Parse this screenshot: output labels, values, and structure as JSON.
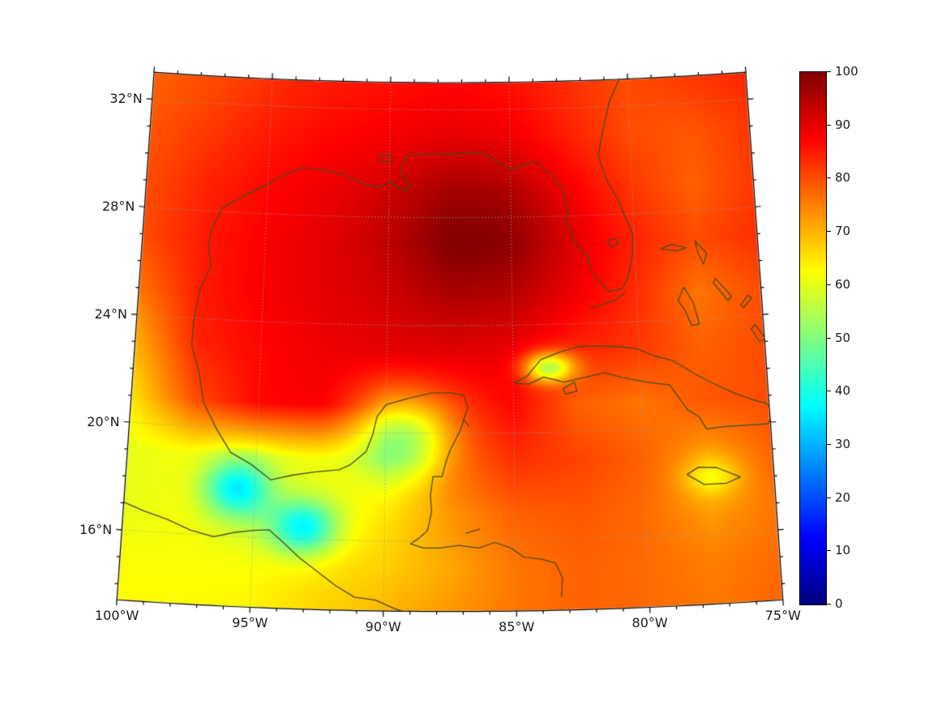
{
  "figure": {
    "kind": "geographic field plot (percentage field over Gulf of Mexico / Caribbean)",
    "background": "#ffffff"
  },
  "chart_data": {
    "type": "heatmap",
    "projection": "lambert-conformal-conic",
    "extent": {
      "lon_min": -100,
      "lon_max": -75,
      "lat_min": 13.4,
      "lat_max": 33
    },
    "colorbar": {
      "min": 0,
      "max": 100,
      "ticks": [
        0,
        10,
        20,
        30,
        40,
        50,
        60,
        70,
        80,
        90,
        100
      ]
    },
    "colormap": {
      "name": "jet",
      "stops": [
        [
          0,
          "#00007f"
        ],
        [
          0.125,
          "#0000ff"
        ],
        [
          0.375,
          "#00ffff"
        ],
        [
          0.625,
          "#ffff00"
        ],
        [
          0.875,
          "#ff0000"
        ],
        [
          1,
          "#7f0000"
        ]
      ]
    },
    "y_tick_labels": [
      {
        "lat": 32,
        "label": "32°N"
      },
      {
        "lat": 28,
        "label": "28°N"
      },
      {
        "lat": 24,
        "label": "24°N"
      },
      {
        "lat": 20,
        "label": "20°N"
      },
      {
        "lat": 16,
        "label": "16°N"
      }
    ],
    "x_tick_labels": [
      {
        "lon": -100,
        "label": "100°W"
      },
      {
        "lon": -95,
        "label": "95°W"
      },
      {
        "lon": -90,
        "label": "90°W"
      },
      {
        "lon": -85,
        "label": "85°W"
      },
      {
        "lon": -80,
        "label": "80°W"
      },
      {
        "lon": -75,
        "label": "75°W"
      }
    ],
    "graticule": {
      "lats": [
        16,
        20,
        24,
        28,
        32
      ],
      "lons": [
        -100,
        -95,
        -90,
        -85,
        -80,
        -75
      ]
    },
    "field_grid": {
      "comment": "value grid (0-100), rows north-to-south lat 33..13 step -2, cols lon -100..-75 step 2.5",
      "lat_start": 33,
      "lat_step": -2,
      "lon_start": -100,
      "lon_step": 2.5,
      "values": [
        [
          78,
          80,
          83,
          85,
          86,
          87,
          86,
          83,
          80,
          82,
          84
        ],
        [
          79,
          82,
          85,
          87,
          88,
          89,
          88,
          84,
          80,
          79,
          82
        ],
        [
          80,
          84,
          87,
          89,
          91,
          93,
          92,
          87,
          82,
          78,
          82
        ],
        [
          80,
          85,
          88,
          90,
          92,
          95,
          94,
          89,
          84,
          80,
          83
        ],
        [
          76,
          85,
          88,
          90,
          91,
          93,
          92,
          88,
          83,
          76,
          80
        ],
        [
          70,
          84,
          87,
          89,
          90,
          90,
          89,
          84,
          82,
          78,
          80
        ],
        [
          65,
          80,
          87,
          88,
          80,
          83,
          87,
          78,
          76,
          79,
          80
        ],
        [
          60,
          62,
          60,
          62,
          63,
          78,
          83,
          81,
          78,
          72,
          78
        ],
        [
          60,
          62,
          58,
          60,
          65,
          73,
          78,
          79,
          77,
          72,
          76
        ],
        [
          62,
          62,
          62,
          65,
          67,
          71,
          76,
          78,
          77,
          75,
          77
        ],
        [
          63,
          63,
          64,
          67,
          70,
          73,
          76,
          78,
          77,
          76,
          78
        ]
      ]
    },
    "anomaly_blobs": [
      {
        "lon": -86.3,
        "lat": 27.4,
        "sigma_lon": 2.6,
        "sigma_lat": 2.0,
        "amp": 5
      },
      {
        "lon": -89.2,
        "lat": 19.9,
        "sigma_lon": 1.3,
        "sigma_lat": 1.1,
        "amp": -20
      },
      {
        "lon": -95.7,
        "lat": 17.8,
        "sigma_lon": 0.9,
        "sigma_lat": 0.75,
        "amp": -24
      },
      {
        "lon": -93.1,
        "lat": 16.4,
        "sigma_lon": 0.9,
        "sigma_lat": 0.7,
        "amp": -24
      },
      {
        "lon": -83.6,
        "lat": 22.4,
        "sigma_lon": 0.7,
        "sigma_lat": 0.4,
        "amp": -30
      },
      {
        "lon": -77.4,
        "lat": 18.1,
        "sigma_lon": 0.8,
        "sigma_lat": 0.5,
        "amp": -10
      }
    ],
    "coastlines": {
      "us_gulf_atlantic": [
        [
          -97.15,
          25.95
        ],
        [
          -97.3,
          26.7
        ],
        [
          -97.2,
          27.35
        ],
        [
          -96.8,
          28.15
        ],
        [
          -96.0,
          28.6
        ],
        [
          -95.1,
          29.05
        ],
        [
          -94.4,
          29.45
        ],
        [
          -93.6,
          29.75
        ],
        [
          -92.7,
          29.7
        ],
        [
          -91.9,
          29.55
        ],
        [
          -91.2,
          29.25
        ],
        [
          -90.4,
          29.1
        ],
        [
          -89.9,
          29.3
        ],
        [
          -89.4,
          28.95
        ],
        [
          -89.15,
          29.15
        ],
        [
          -89.55,
          29.75
        ],
        [
          -89.3,
          30.3
        ],
        [
          -88.8,
          30.35
        ],
        [
          -88.1,
          30.35
        ],
        [
          -87.5,
          30.35
        ],
        [
          -86.8,
          30.4
        ],
        [
          -86.2,
          30.4
        ],
        [
          -85.6,
          30.1
        ],
        [
          -85.0,
          29.75
        ],
        [
          -84.4,
          29.95
        ],
        [
          -83.9,
          30.05
        ],
        [
          -83.3,
          29.5
        ],
        [
          -82.9,
          29.05
        ],
        [
          -82.65,
          28.35
        ],
        [
          -82.75,
          27.9
        ],
        [
          -82.45,
          27.05
        ],
        [
          -81.9,
          26.45
        ],
        [
          -81.75,
          25.85
        ],
        [
          -81.1,
          25.15
        ],
        [
          -80.55,
          25.25
        ],
        [
          -80.3,
          25.7
        ],
        [
          -80.1,
          26.5
        ],
        [
          -80.05,
          27.2
        ],
        [
          -80.5,
          28.3
        ],
        [
          -80.6,
          28.55
        ],
        [
          -81.0,
          29.2
        ],
        [
          -81.35,
          30.2
        ],
        [
          -81.1,
          31.2
        ],
        [
          -80.8,
          32.2
        ],
        [
          -80.3,
          33.1
        ]
      ],
      "mexico_caribbean": [
        [
          -97.15,
          25.95
        ],
        [
          -97.55,
          25.1
        ],
        [
          -97.7,
          24.1
        ],
        [
          -97.75,
          23.0
        ],
        [
          -97.4,
          22.0
        ],
        [
          -97.15,
          20.9
        ],
        [
          -96.6,
          19.95
        ],
        [
          -96.0,
          19.1
        ],
        [
          -95.2,
          18.7
        ],
        [
          -94.4,
          18.15
        ],
        [
          -93.6,
          18.35
        ],
        [
          -92.7,
          18.5
        ],
        [
          -91.8,
          18.6
        ],
        [
          -91.35,
          18.8
        ],
        [
          -90.75,
          19.3
        ],
        [
          -90.5,
          19.95
        ],
        [
          -90.35,
          20.6
        ],
        [
          -90.0,
          21.05
        ],
        [
          -89.1,
          21.3
        ],
        [
          -88.2,
          21.5
        ],
        [
          -87.4,
          21.5
        ],
        [
          -86.95,
          21.4
        ],
        [
          -86.8,
          20.95
        ],
        [
          -87.1,
          20.1
        ],
        [
          -87.5,
          19.35
        ],
        [
          -87.65,
          18.95
        ],
        [
          -87.8,
          18.4
        ],
        [
          -88.15,
          18.4
        ],
        [
          -88.25,
          17.7
        ],
        [
          -88.2,
          17.1
        ],
        [
          -88.35,
          16.4
        ],
        [
          -88.7,
          16.1
        ],
        [
          -89.0,
          15.9
        ],
        [
          -88.5,
          15.75
        ],
        [
          -87.9,
          15.75
        ],
        [
          -87.15,
          15.85
        ],
        [
          -86.4,
          15.75
        ],
        [
          -85.8,
          15.95
        ],
        [
          -85.2,
          15.75
        ],
        [
          -84.7,
          15.4
        ],
        [
          -84.0,
          15.3
        ],
        [
          -83.5,
          15.15
        ],
        [
          -83.25,
          14.6
        ],
        [
          -83.3,
          13.9
        ]
      ],
      "mexico_pacific": [
        [
          -100.2,
          17.1
        ],
        [
          -99.2,
          16.75
        ],
        [
          -98.3,
          16.5
        ],
        [
          -97.4,
          16.15
        ],
        [
          -96.5,
          15.95
        ],
        [
          -95.7,
          16.15
        ],
        [
          -95.0,
          16.25
        ],
        [
          -94.4,
          16.3
        ],
        [
          -93.9,
          15.9
        ],
        [
          -93.2,
          15.3
        ],
        [
          -92.5,
          14.8
        ],
        [
          -91.8,
          14.3
        ],
        [
          -91.1,
          13.9
        ],
        [
          -90.3,
          13.8
        ],
        [
          -89.6,
          13.5
        ],
        [
          -89.0,
          13.3
        ]
      ],
      "cuba": [
        [
          -84.95,
          21.85
        ],
        [
          -84.45,
          22.1
        ],
        [
          -83.9,
          22.7
        ],
        [
          -83.2,
          22.95
        ],
        [
          -82.4,
          23.15
        ],
        [
          -81.6,
          23.15
        ],
        [
          -80.8,
          23.1
        ],
        [
          -80.1,
          23.0
        ],
        [
          -79.4,
          22.7
        ],
        [
          -78.7,
          22.5
        ],
        [
          -77.9,
          22.0
        ],
        [
          -77.2,
          21.6
        ],
        [
          -76.4,
          21.2
        ],
        [
          -75.7,
          20.9
        ],
        [
          -75.1,
          20.7
        ],
        [
          -74.8,
          20.35
        ],
        [
          -75.1,
          19.95
        ],
        [
          -75.9,
          19.95
        ],
        [
          -76.8,
          19.95
        ],
        [
          -77.5,
          19.9
        ],
        [
          -77.75,
          20.35
        ],
        [
          -78.2,
          20.65
        ],
        [
          -78.85,
          21.6
        ],
        [
          -79.8,
          21.75
        ],
        [
          -80.7,
          21.95
        ],
        [
          -81.4,
          22.15
        ],
        [
          -82.2,
          22.0
        ],
        [
          -83.0,
          21.85
        ],
        [
          -83.8,
          22.05
        ],
        [
          -84.4,
          21.8
        ],
        [
          -84.95,
          21.85
        ]
      ],
      "isla_juventud": [
        [
          -83.05,
          21.6
        ],
        [
          -82.6,
          21.85
        ],
        [
          -82.5,
          21.5
        ],
        [
          -82.95,
          21.4
        ],
        [
          -83.05,
          21.6
        ]
      ],
      "jamaica": [
        [
          -78.35,
          18.25
        ],
        [
          -77.9,
          18.5
        ],
        [
          -77.2,
          18.45
        ],
        [
          -76.3,
          18.05
        ],
        [
          -76.85,
          17.85
        ],
        [
          -77.7,
          17.85
        ],
        [
          -78.35,
          18.25
        ]
      ],
      "grand_bahama": [
        [
          -78.95,
          26.65
        ],
        [
          -78.3,
          26.55
        ],
        [
          -77.9,
          26.65
        ],
        [
          -78.5,
          26.8
        ],
        [
          -78.95,
          26.65
        ]
      ],
      "abaco": [
        [
          -77.55,
          26.9
        ],
        [
          -77.1,
          26.4
        ],
        [
          -77.25,
          26.0
        ],
        [
          -77.45,
          26.45
        ],
        [
          -77.55,
          26.9
        ]
      ],
      "andros": [
        [
          -78.1,
          25.2
        ],
        [
          -77.75,
          24.6
        ],
        [
          -77.55,
          23.8
        ],
        [
          -77.85,
          23.75
        ],
        [
          -78.1,
          24.35
        ],
        [
          -78.35,
          24.7
        ],
        [
          -78.1,
          25.2
        ]
      ],
      "eleuthera": [
        [
          -76.8,
          25.45
        ],
        [
          -76.2,
          24.75
        ],
        [
          -76.35,
          24.6
        ],
        [
          -76.9,
          25.3
        ],
        [
          -76.8,
          25.45
        ]
      ],
      "cat_island": [
        [
          -75.75,
          24.3
        ],
        [
          -75.4,
          24.65
        ],
        [
          -75.55,
          24.75
        ],
        [
          -75.85,
          24.4
        ],
        [
          -75.75,
          24.3
        ]
      ],
      "long_island": [
        [
          -75.35,
          23.65
        ],
        [
          -74.95,
          23.1
        ],
        [
          -75.2,
          23.0
        ],
        [
          -75.5,
          23.5
        ],
        [
          -75.35,
          23.65
        ]
      ],
      "florida_keys": [
        [
          -80.45,
          25.1
        ],
        [
          -80.8,
          24.85
        ],
        [
          -81.3,
          24.7
        ],
        [
          -81.9,
          24.55
        ]
      ],
      "lake_okeechobee": [
        [
          -81.1,
          27.05
        ],
        [
          -80.75,
          27.1
        ],
        [
          -80.65,
          26.9
        ],
        [
          -80.95,
          26.8
        ],
        [
          -81.1,
          27.05
        ]
      ],
      "lake_pontchartrain": [
        [
          -90.4,
          30.3
        ],
        [
          -89.95,
          30.3
        ],
        [
          -89.95,
          30.05
        ],
        [
          -90.4,
          30.05
        ],
        [
          -90.4,
          30.3
        ]
      ],
      "cozumel": [
        [
          -87.0,
          20.55
        ],
        [
          -86.75,
          20.25
        ]
      ],
      "roatan": [
        [
          -86.9,
          16.3
        ],
        [
          -86.35,
          16.45
        ]
      ]
    },
    "colors": {
      "coastline": "#4a4a1c",
      "graticule": "#9a9a9a",
      "border": "#000000",
      "ticks": "#000000",
      "labels": "#1a1a1a",
      "background": "#ffffff"
    }
  }
}
